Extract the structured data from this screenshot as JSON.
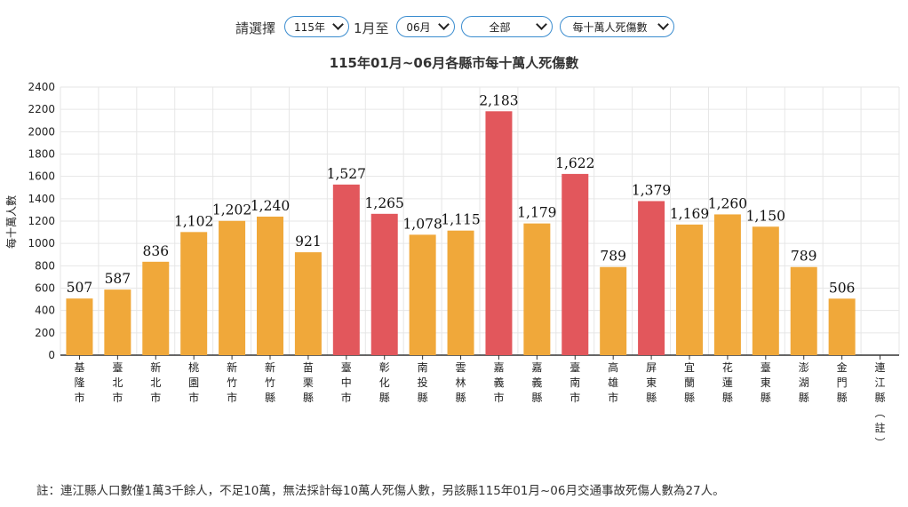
{
  "filters": {
    "prompt": "請選擇",
    "year_value": "115年",
    "from_text": "1月至",
    "month_value": "06月",
    "region_value": "全部",
    "metric_value": "每十萬人死傷數"
  },
  "colors": {
    "normal": "#f0a83a",
    "highlight": "#e2575c",
    "grid": "#e6e6e6",
    "accent": "#3a8ccf"
  },
  "chart_data": {
    "type": "bar",
    "title": "115年01月~06月各縣市每十萬人死傷數",
    "ylabel": "每十萬人數",
    "ylim": [
      0,
      2400
    ],
    "yticks": [
      0,
      200,
      400,
      600,
      800,
      1000,
      1200,
      1400,
      1600,
      1800,
      2000,
      2200,
      2400
    ],
    "grid": true,
    "categories": [
      "基隆市",
      "臺北市",
      "新北市",
      "桃園市",
      "新竹市",
      "新竹縣",
      "苗栗縣",
      "臺中市",
      "彰化縣",
      "南投縣",
      "雲林縣",
      "嘉義市",
      "嘉義縣",
      "臺南市",
      "高雄市",
      "屏東縣",
      "宜蘭縣",
      "花蓮縣",
      "臺東縣",
      "澎湖縣",
      "金門縣",
      "連江縣（註）"
    ],
    "values": [
      507,
      587,
      836,
      1102,
      1202,
      1240,
      921,
      1527,
      1265,
      1078,
      1115,
      2183,
      1179,
      1622,
      789,
      1379,
      1169,
      1260,
      1150,
      789,
      506,
      null
    ],
    "labels": [
      "507",
      "587",
      "836",
      "1,102",
      "1,202",
      "1,240",
      "921",
      "1,527",
      "1,265",
      "1,078",
      "1,115",
      "2,183",
      "1,179",
      "1,622",
      "789",
      "1,379",
      "1,169",
      "1,260",
      "1,150",
      "789",
      "506",
      ""
    ],
    "highlight": [
      false,
      false,
      false,
      false,
      false,
      false,
      false,
      true,
      true,
      false,
      false,
      true,
      false,
      true,
      false,
      true,
      false,
      false,
      false,
      false,
      false,
      false
    ]
  },
  "footnote": "註：連江縣人口數僅1萬3千餘人，不足10萬，無法採計每10萬人死傷人數，另該縣115年01月~06月交通事故死傷人數為27人。"
}
